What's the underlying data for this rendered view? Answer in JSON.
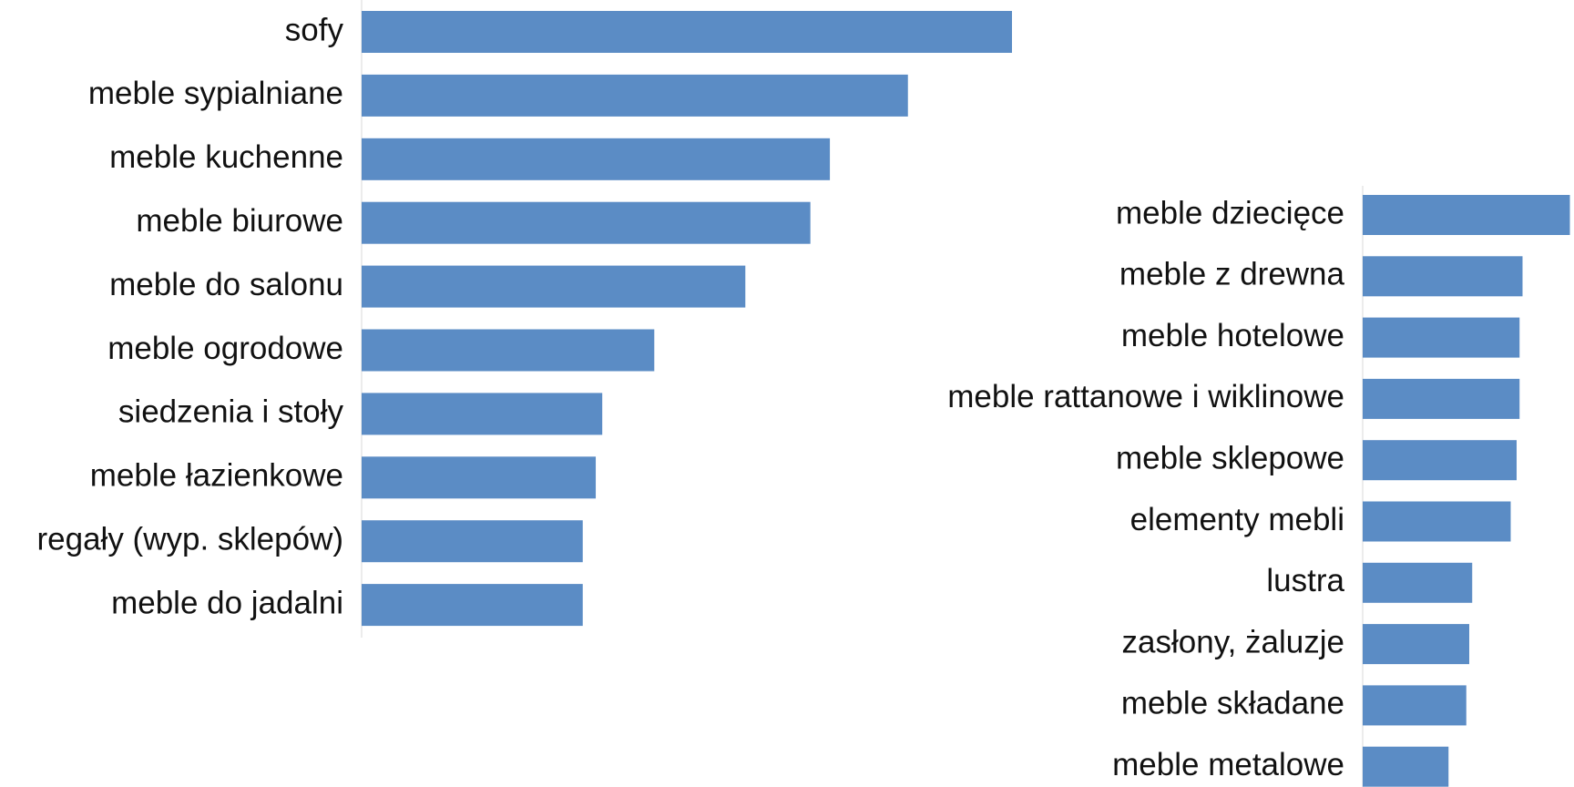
{
  "chart_data": [
    {
      "type": "bar",
      "orientation": "horizontal",
      "categories": [
        "sofy",
        "meble sypialniane",
        "meble kuchenne",
        "meble biurowe",
        "meble do salonu",
        "meble ogrodowe",
        "siedzenia i stoły",
        "meble łazienkowe",
        "regały (wyp. sklepów)",
        "meble do jadalni"
      ],
      "values": [
        100,
        84,
        72,
        69,
        59,
        45,
        37,
        36,
        34,
        34
      ],
      "xlim": [
        0,
        100
      ],
      "grid": false,
      "legend": "none",
      "bar_color": "#5B8CC5"
    },
    {
      "type": "bar",
      "orientation": "horizontal",
      "categories": [
        "meble dziecięce",
        "meble z drewna",
        "meble hotelowe",
        "meble rattanowe i wiklinowe",
        "meble sklepowe",
        "elementy mebli",
        "lustra",
        "zasłony, żaluzje",
        "meble składane",
        "meble metalowe"
      ],
      "values": [
        35,
        27,
        26.5,
        26.5,
        26,
        25,
        18.5,
        18,
        17.5,
        14.5
      ],
      "xlim": [
        0,
        100
      ],
      "grid": false,
      "legend": "none",
      "bar_color": "#5B8CC5"
    }
  ]
}
